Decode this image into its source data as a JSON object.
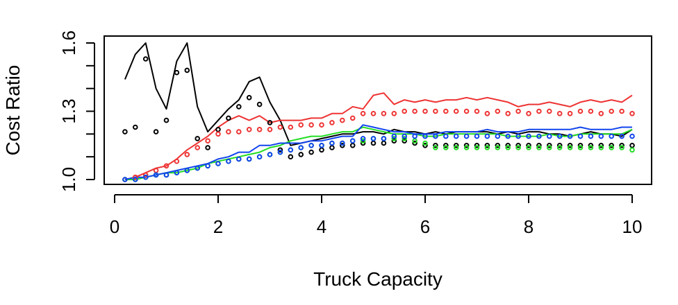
{
  "chart_data": {
    "type": "line",
    "title": "",
    "xlabel": "Truck Capacity",
    "ylabel": "Cost Ratio",
    "xlim": [
      0,
      10
    ],
    "ylim": [
      1.0,
      1.6
    ],
    "x_ticks": [
      0,
      2,
      4,
      6,
      8,
      10
    ],
    "y_ticks": [
      1.0,
      1.1,
      1.2,
      1.3,
      1.4,
      1.5,
      1.6
    ],
    "y_tick_labels": [
      {
        "value": 1.0,
        "label": "1.0"
      },
      {
        "value": 1.3,
        "label": "1.3"
      },
      {
        "value": 1.6,
        "label": "1.6"
      }
    ],
    "grid": false,
    "legend": "none",
    "x": [
      0.2,
      0.4,
      0.6,
      0.8,
      1.0,
      1.2,
      1.4,
      1.6,
      1.8,
      2.0,
      2.2,
      2.4,
      2.6,
      2.8,
      3.0,
      3.2,
      3.4,
      3.6,
      3.8,
      4.0,
      4.2,
      4.4,
      4.6,
      4.8,
      5.0,
      5.2,
      5.4,
      5.6,
      5.8,
      6.0,
      6.2,
      6.4,
      6.6,
      6.8,
      7.0,
      7.2,
      7.4,
      7.6,
      7.8,
      8.0,
      8.2,
      8.4,
      8.6,
      8.8,
      9.0,
      9.2,
      9.4,
      9.6,
      9.8,
      10.0
    ],
    "series": [
      {
        "style": "line",
        "color": "#000000",
        "values": [
          1.44,
          1.55,
          1.6,
          1.4,
          1.31,
          1.52,
          1.6,
          1.32,
          1.21,
          1.26,
          1.31,
          1.35,
          1.43,
          1.45,
          1.34,
          1.26,
          1.15,
          1.16,
          1.17,
          1.18,
          1.19,
          1.2,
          1.2,
          1.21,
          1.21,
          1.2,
          1.22,
          1.21,
          1.21,
          1.2,
          1.21,
          1.2,
          1.21,
          1.21,
          1.21,
          1.21,
          1.2,
          1.21,
          1.2,
          1.21,
          1.21,
          1.2,
          1.2,
          1.19,
          1.2,
          1.21,
          1.2,
          1.2,
          1.19,
          1.22
        ]
      },
      {
        "style": "line",
        "color": "#ee3333",
        "values": [
          1.0,
          1.01,
          1.03,
          1.05,
          1.06,
          1.09,
          1.13,
          1.16,
          1.19,
          1.23,
          1.26,
          1.28,
          1.26,
          1.28,
          1.25,
          1.26,
          1.26,
          1.26,
          1.27,
          1.27,
          1.29,
          1.29,
          1.32,
          1.31,
          1.37,
          1.38,
          1.33,
          1.35,
          1.34,
          1.35,
          1.34,
          1.35,
          1.35,
          1.36,
          1.35,
          1.36,
          1.35,
          1.34,
          1.32,
          1.33,
          1.33,
          1.34,
          1.33,
          1.32,
          1.34,
          1.35,
          1.34,
          1.35,
          1.34,
          1.37
        ]
      },
      {
        "style": "line",
        "color": "#22dd22",
        "values": [
          1.0,
          1.0,
          1.01,
          1.02,
          1.03,
          1.03,
          1.04,
          1.05,
          1.07,
          1.08,
          1.09,
          1.1,
          1.11,
          1.12,
          1.14,
          1.15,
          1.17,
          1.18,
          1.19,
          1.19,
          1.2,
          1.21,
          1.21,
          1.23,
          1.22,
          1.21,
          1.2,
          1.2,
          1.2,
          1.19,
          1.19,
          1.2,
          1.2,
          1.2,
          1.2,
          1.2,
          1.2,
          1.19,
          1.19,
          1.19,
          1.19,
          1.2,
          1.19,
          1.19,
          1.2,
          1.2,
          1.2,
          1.2,
          1.2,
          1.22
        ]
      },
      {
        "style": "line",
        "color": "#1144ee",
        "values": [
          1.0,
          1.01,
          1.01,
          1.02,
          1.03,
          1.04,
          1.05,
          1.06,
          1.07,
          1.09,
          1.1,
          1.12,
          1.12,
          1.15,
          1.15,
          1.16,
          1.16,
          1.16,
          1.17,
          1.17,
          1.18,
          1.19,
          1.19,
          1.24,
          1.23,
          1.22,
          1.21,
          1.21,
          1.2,
          1.2,
          1.2,
          1.21,
          1.21,
          1.21,
          1.21,
          1.22,
          1.21,
          1.21,
          1.21,
          1.22,
          1.22,
          1.22,
          1.22,
          1.22,
          1.23,
          1.22,
          1.22,
          1.22,
          1.23,
          1.23
        ]
      },
      {
        "style": "points",
        "color": "#000000",
        "values": [
          1.21,
          1.23,
          1.53,
          1.21,
          1.26,
          1.47,
          1.48,
          1.18,
          1.14,
          1.22,
          1.27,
          1.32,
          1.36,
          1.33,
          1.25,
          1.13,
          1.1,
          1.11,
          1.12,
          1.13,
          1.14,
          1.15,
          1.15,
          1.16,
          1.16,
          1.16,
          1.17,
          1.17,
          1.16,
          1.15,
          1.15,
          1.15,
          1.15,
          1.15,
          1.15,
          1.15,
          1.15,
          1.15,
          1.15,
          1.15,
          1.15,
          1.15,
          1.15,
          1.15,
          1.15,
          1.15,
          1.15,
          1.15,
          1.15,
          1.15
        ]
      },
      {
        "style": "points",
        "color": "#ee3333",
        "values": [
          1.0,
          1.01,
          1.02,
          1.04,
          1.06,
          1.08,
          1.11,
          1.14,
          1.17,
          1.2,
          1.21,
          1.21,
          1.22,
          1.22,
          1.22,
          1.23,
          1.23,
          1.24,
          1.24,
          1.24,
          1.25,
          1.26,
          1.27,
          1.29,
          1.29,
          1.29,
          1.29,
          1.3,
          1.3,
          1.3,
          1.3,
          1.3,
          1.3,
          1.3,
          1.3,
          1.29,
          1.3,
          1.29,
          1.3,
          1.29,
          1.3,
          1.3,
          1.29,
          1.29,
          1.3,
          1.3,
          1.29,
          1.3,
          1.3,
          1.29
        ]
      },
      {
        "style": "points",
        "color": "#22dd22",
        "values": [
          1.0,
          1.0,
          1.01,
          1.02,
          1.02,
          1.03,
          1.04,
          1.05,
          1.06,
          1.07,
          1.08,
          1.09,
          1.09,
          1.1,
          1.11,
          1.12,
          1.13,
          1.14,
          1.15,
          1.15,
          1.16,
          1.16,
          1.17,
          1.17,
          1.18,
          1.18,
          1.18,
          1.18,
          1.17,
          1.16,
          1.14,
          1.14,
          1.14,
          1.14,
          1.14,
          1.14,
          1.14,
          1.14,
          1.14,
          1.14,
          1.14,
          1.14,
          1.14,
          1.14,
          1.14,
          1.14,
          1.14,
          1.14,
          1.14,
          1.13
        ]
      },
      {
        "style": "points",
        "color": "#1144ee",
        "values": [
          1.0,
          1.0,
          1.01,
          1.02,
          1.02,
          1.03,
          1.04,
          1.05,
          1.06,
          1.07,
          1.08,
          1.09,
          1.09,
          1.1,
          1.11,
          1.12,
          1.13,
          1.14,
          1.15,
          1.15,
          1.16,
          1.16,
          1.17,
          1.18,
          1.18,
          1.18,
          1.19,
          1.19,
          1.19,
          1.19,
          1.19,
          1.19,
          1.19,
          1.19,
          1.19,
          1.19,
          1.19,
          1.19,
          1.19,
          1.19,
          1.19,
          1.19,
          1.19,
          1.19,
          1.19,
          1.19,
          1.19,
          1.19,
          1.19,
          1.19
        ]
      }
    ]
  }
}
